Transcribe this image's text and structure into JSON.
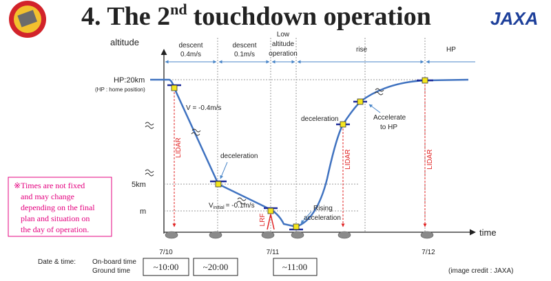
{
  "title": {
    "main": "4. The 2",
    "sup": "nd",
    "rest": "touchdown operation"
  },
  "logo": "JAXA",
  "axes": {
    "y": "altitude",
    "x": "time"
  },
  "phases": [
    {
      "lines": [
        "descent",
        "0.4m/s"
      ]
    },
    {
      "lines": [
        "descent",
        "0.1m/s"
      ]
    },
    {
      "lines": [
        "Low",
        "altitude",
        "operation"
      ]
    },
    {
      "lines": [
        "rise"
      ]
    },
    {
      "lines": [
        "HP"
      ]
    }
  ],
  "levels": {
    "hp": "HP:20km",
    "hp_note": "(HP : home position)",
    "mid": "5km",
    "low": "m"
  },
  "annotations": {
    "v1": "V = -0.4m/s",
    "decel1": "deceleration",
    "v2_main": "V",
    "v2_sub": "initial",
    "v2_rest": "= -0.1m/s",
    "rising": [
      "Rising",
      "acceleration"
    ],
    "decel2": "deceleration",
    "accel": [
      "Accelerate",
      "to HP"
    ]
  },
  "sensors": [
    "LIDAR",
    "LRF",
    "LIDAR",
    "LIDAR"
  ],
  "dates": [
    "7/10",
    "7/11",
    "7/12"
  ],
  "note": [
    "※Times are not fixed",
    "and may change",
    "depending on the final",
    "plan and situation on",
    "the day of operation."
  ],
  "schedule": {
    "label": "Date & time:",
    "rows": [
      "On-board time",
      "Ground time"
    ],
    "times": [
      "~10:00",
      "~20:00",
      "~11:00"
    ]
  },
  "credit": "(image credit : JAXA)"
}
